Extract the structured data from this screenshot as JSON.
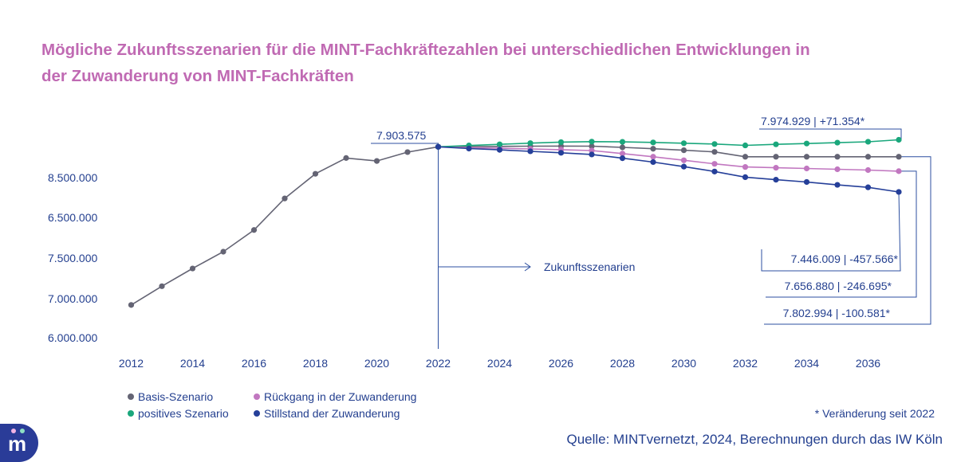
{
  "title": "Mögliche Zukunftsszenarien für die MINT-Fachkräftezahlen bei unterschiedlichen Entwicklungen in der Zuwanderung von MINT-Fachkräften",
  "legend": {
    "basis": "Basis-Szenario",
    "rueckgang": "Rückgang in der Zuwanderung",
    "positiv": "positives Szenario",
    "stillstand": "Stillstand der Zuwanderung"
  },
  "footnote": "* Veränderung seit 2022",
  "source": "Quelle: MINTvernetzt, 2024, Berechnungen durch das IW Köln",
  "colors": {
    "title": "#c06ab3",
    "text": "#233f8f",
    "basis": "#646474",
    "rueckgang": "#c177c0",
    "positiv": "#1aa77c",
    "stillstand": "#253f99",
    "annotation_line": "#2c4fa0"
  },
  "chart_data": {
    "type": "line",
    "x": [
      2012,
      2013,
      2014,
      2015,
      2016,
      2017,
      2018,
      2019,
      2020,
      2021,
      2022,
      2023,
      2024,
      2025,
      2026,
      2027,
      2028,
      2029,
      2030,
      2031,
      2032,
      2033,
      2034,
      2035,
      2036,
      2037
    ],
    "x_ticks": [
      "2012",
      "2014",
      "2016",
      "2018",
      "2020",
      "2022",
      "2024",
      "2026",
      "2028",
      "2030",
      "2032",
      "2034",
      "2036"
    ],
    "y_tick_labels": [
      "8.500.000",
      "6.500.000",
      "7.500.000",
      "7.000.000",
      "6.000.000"
    ],
    "ylim": [
      6000000,
      8100000
    ],
    "series": [
      {
        "key": "history",
        "color": "#646474",
        "x": [
          2012,
          2013,
          2014,
          2015,
          2016,
          2017,
          2018,
          2019,
          2020,
          2021,
          2022
        ],
        "values": [
          6300000,
          6490000,
          6670000,
          6840000,
          7060000,
          7380000,
          7630000,
          7790000,
          7760000,
          7850000,
          7903575
        ]
      },
      {
        "key": "basis",
        "name": "Basis-Szenario",
        "color": "#646474",
        "x": [
          2022,
          2023,
          2024,
          2025,
          2026,
          2027,
          2028,
          2029,
          2030,
          2031,
          2032,
          2033,
          2034,
          2035,
          2036,
          2037
        ],
        "values": [
          7903575,
          7906000,
          7908000,
          7910000,
          7911000,
          7910000,
          7898000,
          7884000,
          7869000,
          7852000,
          7803000,
          7803000,
          7803000,
          7803000,
          7803000,
          7802994
        ]
      },
      {
        "key": "rueckgang",
        "name": "Rückgang in der Zuwanderung",
        "color": "#c177c0",
        "x": [
          2022,
          2023,
          2024,
          2025,
          2026,
          2027,
          2028,
          2029,
          2030,
          2031,
          2032,
          2033,
          2034,
          2035,
          2036,
          2037
        ],
        "values": [
          7903575,
          7895000,
          7889000,
          7882000,
          7875000,
          7866000,
          7835000,
          7803000,
          7767000,
          7731000,
          7699000,
          7691000,
          7684000,
          7676000,
          7668000,
          7656880
        ]
      },
      {
        "key": "positiv",
        "name": "positives Szenario",
        "color": "#1aa77c",
        "x": [
          2022,
          2023,
          2024,
          2025,
          2026,
          2027,
          2028,
          2029,
          2030,
          2031,
          2032,
          2033,
          2034,
          2035,
          2036,
          2037
        ],
        "values": [
          7903575,
          7917000,
          7929000,
          7941000,
          7951000,
          7956000,
          7954000,
          7948000,
          7940000,
          7932000,
          7918000,
          7929000,
          7937000,
          7946000,
          7955000,
          7974929
        ]
      },
      {
        "key": "stillstand",
        "name": "Stillstand der Zuwanderung",
        "color": "#253f99",
        "x": [
          2022,
          2023,
          2024,
          2025,
          2026,
          2027,
          2028,
          2029,
          2030,
          2031,
          2032,
          2033,
          2034,
          2035,
          2036,
          2037
        ],
        "values": [
          7903575,
          7886000,
          7873000,
          7858000,
          7843000,
          7826000,
          7788000,
          7749000,
          7703000,
          7653000,
          7596000,
          7570000,
          7547000,
          7518000,
          7493000,
          7446009
        ]
      }
    ],
    "annotations": {
      "start": "7.903.575",
      "zukunft": "Zukunftsszenarien",
      "positiv": "7.974.929 | +71.354*",
      "stillstand": "7.446.009 | -457.566*",
      "rueckgang": "7.656.880 | -246.695*",
      "basis": "7.802.994 | -100.581*"
    },
    "grid": false,
    "legend_position": "bottom-left"
  }
}
